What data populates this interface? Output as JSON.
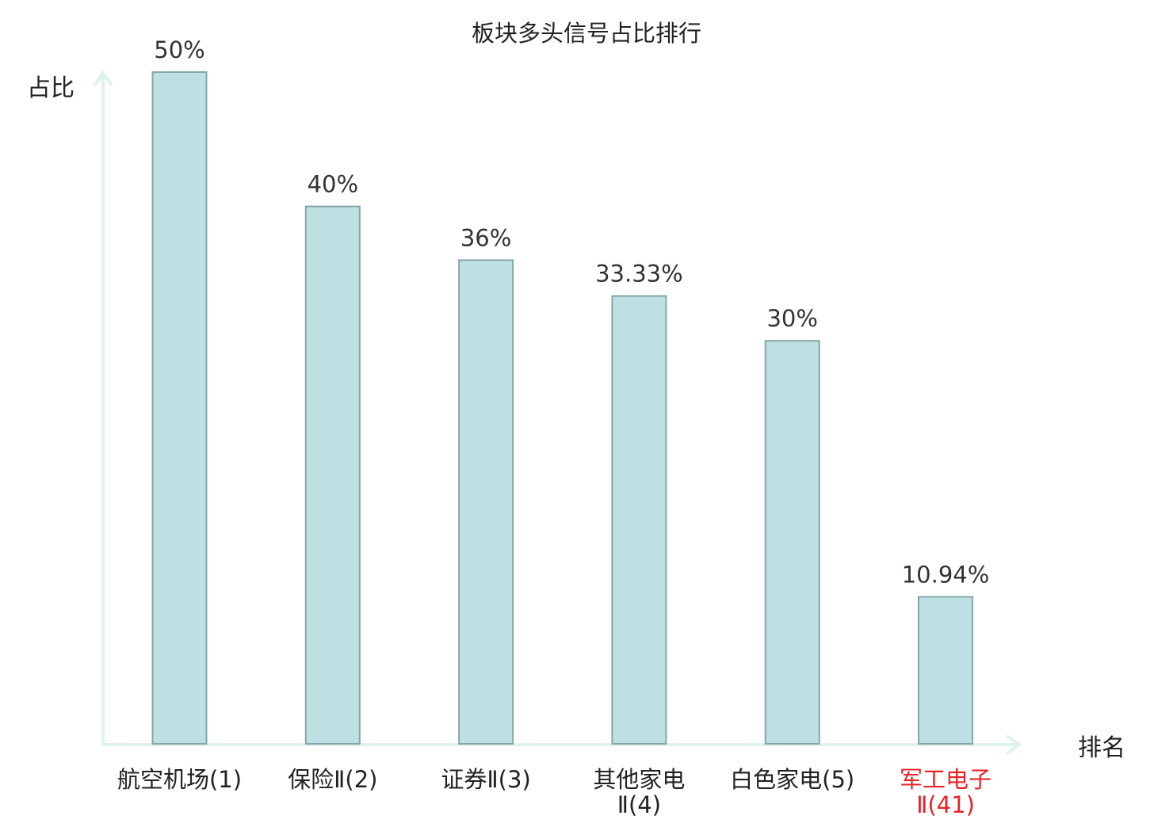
{
  "chart_data": {
    "type": "bar",
    "title": "板块多头信号占比排行",
    "ylabel": "占比",
    "xlabel": "排名",
    "categories": [
      {
        "line1": "航空机场(1)",
        "line2": ""
      },
      {
        "line1": "保险Ⅱ(2)",
        "line2": ""
      },
      {
        "line1": "证券Ⅱ(3)",
        "line2": ""
      },
      {
        "line1": "其他家电",
        "line2": "Ⅱ(4)"
      },
      {
        "line1": "白色家电(5)",
        "line2": ""
      },
      {
        "line1": "军工电子",
        "line2": "Ⅱ(41)"
      }
    ],
    "values": [
      50,
      40,
      36,
      33.33,
      30,
      10.94
    ],
    "value_labels": [
      "50%",
      "40%",
      "36%",
      "33.33%",
      "30%",
      "10.94%"
    ],
    "highlight_index": 5,
    "ylim": [
      0,
      50
    ],
    "grid": false,
    "colors": {
      "bar_fill": "#bde0e3",
      "bar_stroke": "#87a6a8",
      "axis": "#e0f2ef",
      "text": "#333333",
      "highlight": "#e8232a"
    }
  }
}
